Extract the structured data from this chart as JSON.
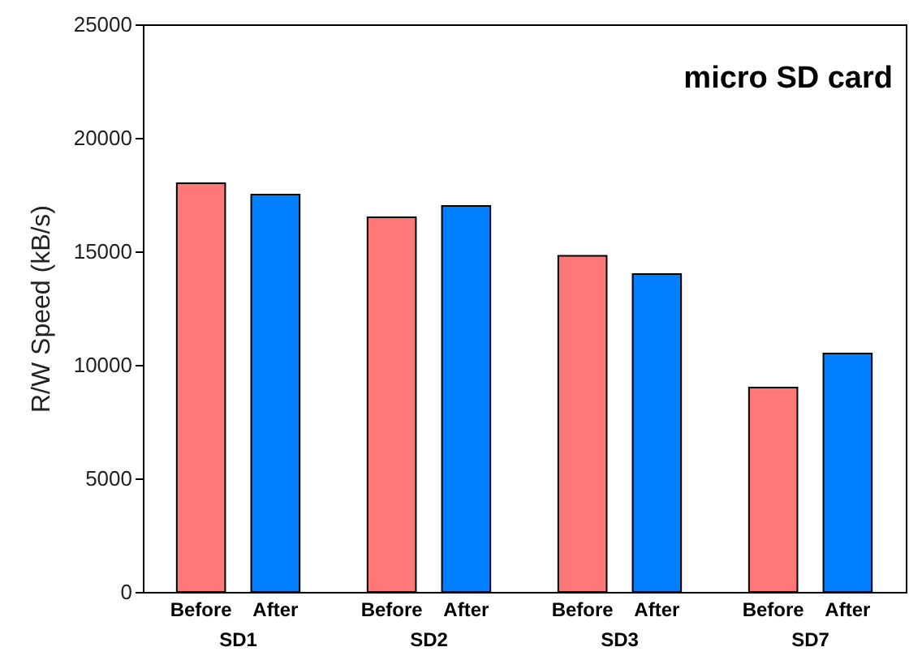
{
  "chart_data": {
    "type": "bar",
    "title": "micro SD card",
    "ylabel": "R/W Speed (kB/s)",
    "categories": [
      "SD1",
      "SD2",
      "SD3",
      "SD7"
    ],
    "series": [
      {
        "name": "Before",
        "color": "#ff7878",
        "values": [
          18000,
          16500,
          14800,
          9000
        ]
      },
      {
        "name": "After",
        "color": "#0080ff",
        "values": [
          17500,
          17000,
          14000,
          10500
        ]
      }
    ],
    "ylim": [
      0,
      25000
    ],
    "yticks": [
      0,
      5000,
      10000,
      15000,
      20000,
      25000
    ],
    "grid": false
  }
}
